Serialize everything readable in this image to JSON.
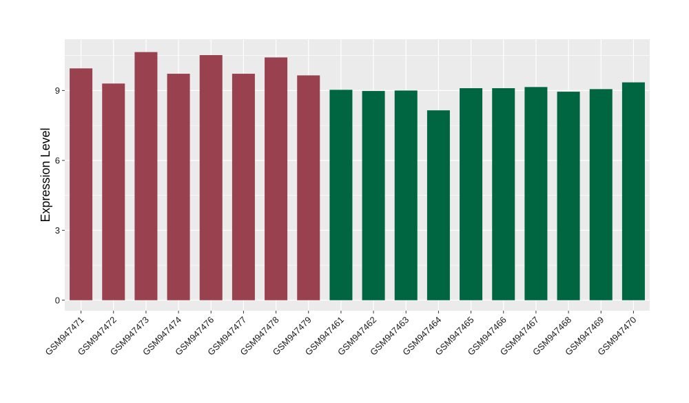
{
  "chart_data": {
    "type": "bar",
    "title": "",
    "xlabel": "",
    "ylabel": "Expression Level",
    "ylim": [
      -0.45,
      11.2
    ],
    "yticks": [
      0,
      3,
      6,
      9
    ],
    "grid": true,
    "panel_background": "#ebebeb",
    "grid_color": "#ffffff",
    "categories": [
      "GSM947471",
      "GSM947472",
      "GSM947473",
      "GSM947474",
      "GSM947476",
      "GSM947477",
      "GSM947478",
      "GSM947479",
      "GSM947461",
      "GSM947462",
      "GSM947463",
      "GSM947464",
      "GSM947465",
      "GSM947466",
      "GSM947467",
      "GSM947468",
      "GSM947469",
      "GSM947470"
    ],
    "values": [
      9.95,
      9.3,
      10.65,
      9.72,
      10.52,
      9.72,
      10.42,
      9.65,
      9.03,
      8.98,
      9.0,
      8.15,
      9.1,
      9.1,
      9.15,
      8.95,
      9.06,
      9.35
    ],
    "groups": [
      "g1",
      "g1",
      "g1",
      "g1",
      "g1",
      "g1",
      "g1",
      "g1",
      "g2",
      "g2",
      "g2",
      "g2",
      "g2",
      "g2",
      "g2",
      "g2",
      "g2",
      "g2"
    ],
    "group_colors": {
      "g1": "#9a414f",
      "g2": "#006641"
    }
  }
}
